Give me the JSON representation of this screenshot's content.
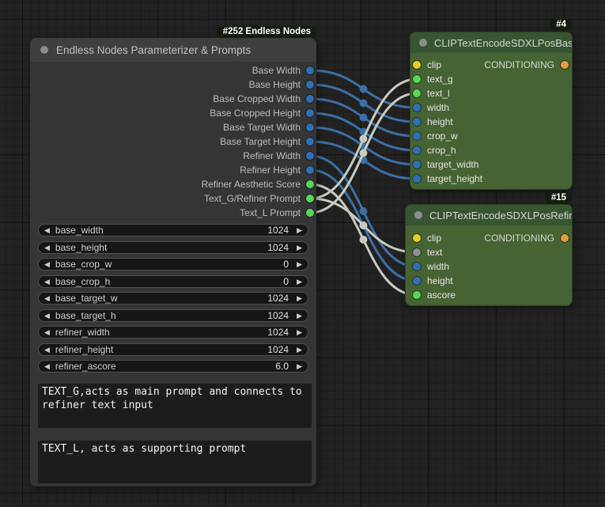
{
  "colors": {
    "canvas_bg": "#222222",
    "grid_minor": "#1c1c1c",
    "grid_major": "#131313",
    "main_header": "#3f3f3f",
    "main_body": "#353535",
    "green_header": "#365530",
    "green_body": "#466333",
    "badge_bg": "#141d10",
    "badge_text": "#ffffff",
    "port_number": "#2f6fb3",
    "port_string": "#57d957",
    "port_clip": "#e7cf1f",
    "port_conditioning": "#ec9b3c",
    "port_gray": "#909090",
    "wire_number": "#3d6fa3",
    "wire_text": "#c6cbbf"
  },
  "icons": {
    "left_arrow": "◀",
    "right_arrow": "▶"
  },
  "nodes": {
    "main": {
      "id_badge": "#252 Endless Nodes",
      "title": "Endless Nodes Parameterizer & Prompts",
      "outputs": [
        {
          "label": "Base Width"
        },
        {
          "label": "Base Height"
        },
        {
          "label": "Base Cropped Width"
        },
        {
          "label": "Base Cropped Height"
        },
        {
          "label": "Base Target Width"
        },
        {
          "label": "Base Target Height"
        },
        {
          "label": "Refiner Width"
        },
        {
          "label": "Refiner Height"
        },
        {
          "label": "Refiner Aesthetic Score"
        },
        {
          "label": "Text_G/Refiner Prompt"
        },
        {
          "label": "Text_L Prompt"
        }
      ],
      "widgets": [
        {
          "name": "base_width",
          "value": "1024"
        },
        {
          "name": "base_height",
          "value": "1024"
        },
        {
          "name": "base_crop_w",
          "value": "0"
        },
        {
          "name": "base_crop_h",
          "value": "0"
        },
        {
          "name": "base_target_w",
          "value": "1024"
        },
        {
          "name": "base_target_h",
          "value": "1024"
        },
        {
          "name": "refiner_width",
          "value": "1024"
        },
        {
          "name": "refiner_height",
          "value": "1024"
        },
        {
          "name": "refiner_ascore",
          "value": "6.0"
        }
      ],
      "prompt_g": "TEXT_G,acts as main prompt and connects to refiner text input",
      "prompt_l": "TEXT_L, acts as supporting prompt"
    },
    "base": {
      "id_badge": "#4",
      "title": "CLIPTextEncodeSDXLPosBase",
      "inputs": [
        {
          "label": "clip"
        },
        {
          "label": "text_g"
        },
        {
          "label": "text_l"
        },
        {
          "label": "width"
        },
        {
          "label": "height"
        },
        {
          "label": "crop_w"
        },
        {
          "label": "crop_h"
        },
        {
          "label": "target_width"
        },
        {
          "label": "target_height"
        }
      ],
      "output_label": "CONDITIONING"
    },
    "refiner": {
      "id_badge": "#15",
      "title": "CLIPTextEncodeSDXLPosRefiner",
      "inputs": [
        {
          "label": "clip"
        },
        {
          "label": "text"
        },
        {
          "label": "width"
        },
        {
          "label": "height"
        },
        {
          "label": "ascore"
        }
      ],
      "output_label": "CONDITIONING"
    }
  },
  "links": [
    {
      "from": "p252_o0",
      "to": "p4_i3",
      "color": "number"
    },
    {
      "from": "p252_o1",
      "to": "p4_i4",
      "color": "number"
    },
    {
      "from": "p252_o2",
      "to": "p4_i5",
      "color": "number"
    },
    {
      "from": "p252_o3",
      "to": "p4_i6",
      "color": "number"
    },
    {
      "from": "p252_o4",
      "to": "p4_i7",
      "color": "number"
    },
    {
      "from": "p252_o5",
      "to": "p4_i8",
      "color": "number"
    },
    {
      "from": "p252_o6",
      "to": "p15_i2",
      "color": "number"
    },
    {
      "from": "p252_o7",
      "to": "p15_i3",
      "color": "number"
    },
    {
      "from": "p252_o8",
      "to": "p15_i4",
      "color": "text"
    },
    {
      "from": "p252_o9",
      "to": "p4_i1",
      "color": "text"
    },
    {
      "from": "p252_o9",
      "to": "p15_i1",
      "color": "text"
    },
    {
      "from": "p252_o10",
      "to": "p4_i2",
      "color": "text"
    }
  ]
}
